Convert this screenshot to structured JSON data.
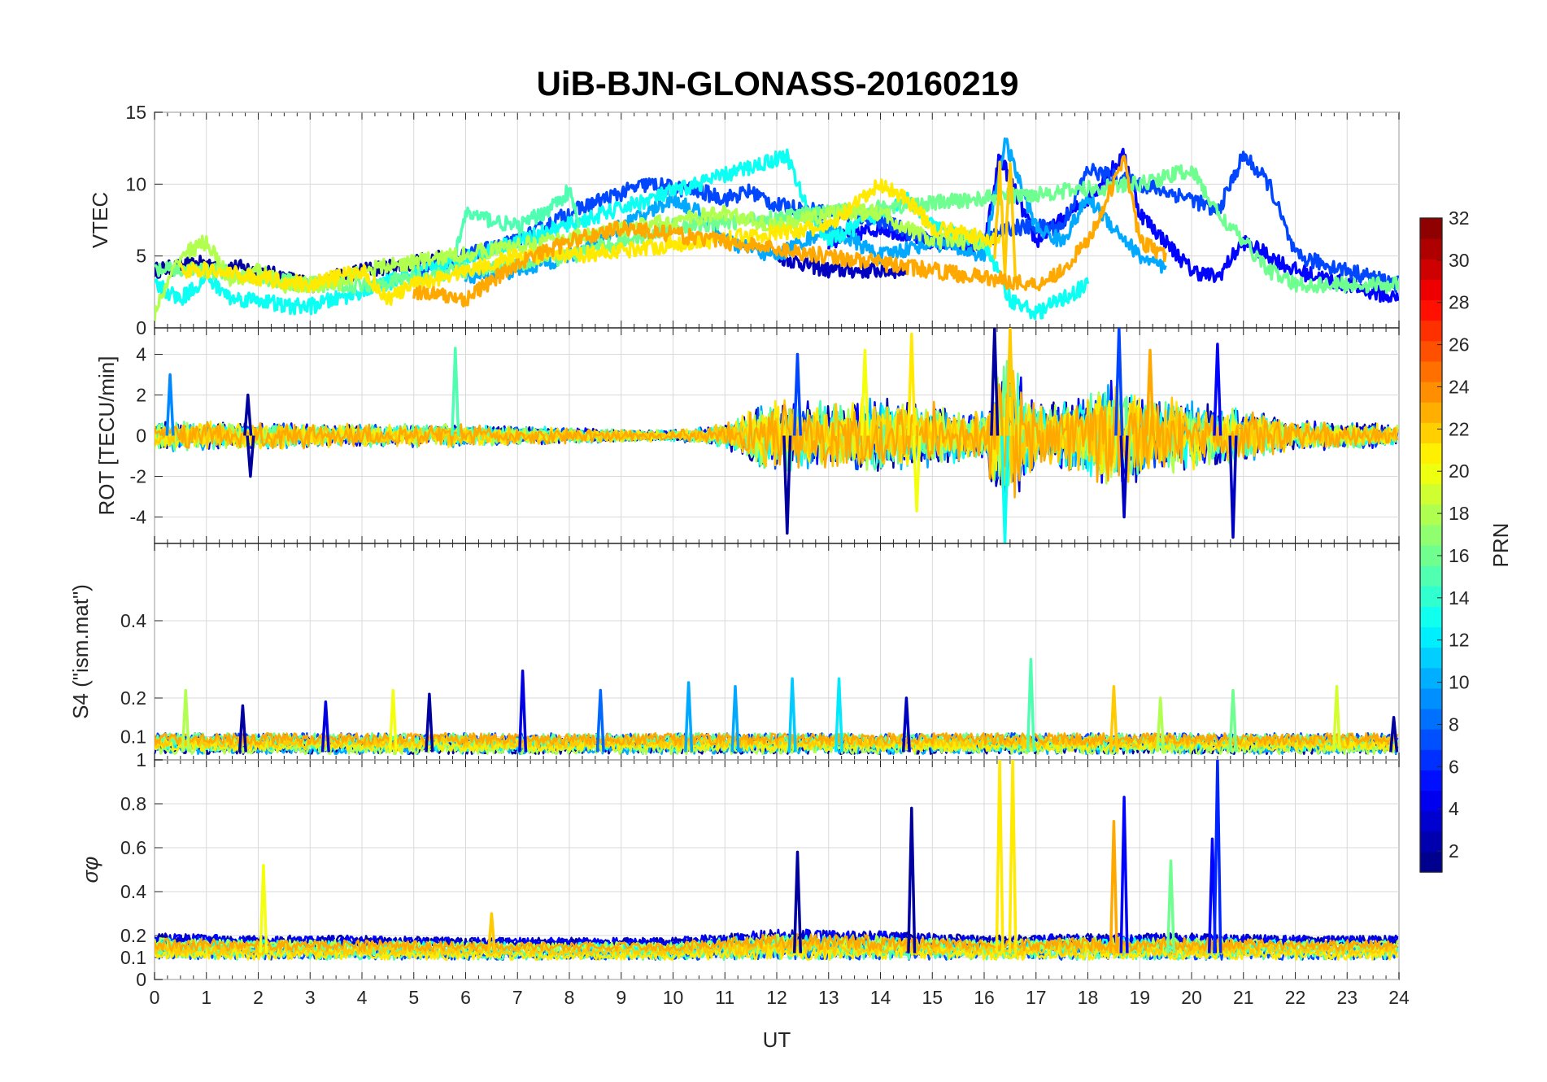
{
  "chart_data": {
    "title": "UiB-BJN-GLONASS-20160219",
    "xlabel": "UT",
    "xlim": [
      0,
      24
    ],
    "xticks": [
      "0",
      "1",
      "2",
      "3",
      "4",
      "5",
      "6",
      "7",
      "8",
      "9",
      "10",
      "11",
      "12",
      "13",
      "14",
      "15",
      "16",
      "17",
      "18",
      "19",
      "20",
      "21",
      "22",
      "23",
      "24"
    ],
    "colorbar": {
      "label": "PRN",
      "colormap": "jet",
      "range": [
        1,
        32
      ],
      "ticks": [
        "2",
        "4",
        "6",
        "8",
        "10",
        "12",
        "14",
        "16",
        "18",
        "20",
        "22",
        "24",
        "26",
        "28",
        "30",
        "32"
      ]
    },
    "panels": [
      {
        "type": "line",
        "name": "vtec",
        "ylabel": "VTEC",
        "ylim": [
          0,
          15
        ],
        "yticks": [
          "0",
          "5",
          "10",
          "15"
        ],
        "series": [
          {
            "name": "PRN 2",
            "prn": 2,
            "x": [
              0,
              1,
              2,
              3,
              4,
              5,
              5.5
            ],
            "y": [
              4,
              4.5,
              4,
              3,
              4,
              4.5,
              5
            ]
          },
          {
            "name": "PRN 3",
            "prn": 3,
            "x": [
              12,
              12.5,
              13,
              13.5,
              14,
              14.5
            ],
            "y": [
              5,
              4.5,
              4,
              4,
              4,
              4
            ]
          },
          {
            "name": "PRN 5",
            "prn": 5,
            "x": [
              13,
              14,
              15,
              16,
              16.3,
              17,
              18,
              18.7,
              19,
              20,
              20.5,
              21,
              22,
              23,
              24
            ],
            "y": [
              6,
              7,
              6,
              5.5,
              12,
              6,
              9,
              12,
              8,
              4,
              3.5,
              6,
              4,
              3,
              2
            ]
          },
          {
            "name": "PRN 7",
            "prn": 7,
            "x": [
              5,
              6,
              7,
              8,
              8.7,
              9.5,
              10.5,
              11,
              11.5,
              12,
              13,
              14,
              15,
              16,
              16.5,
              17.5,
              18,
              19,
              20,
              20.5,
              21,
              21.5,
              22,
              23,
              24
            ],
            "y": [
              4,
              5,
              6,
              8,
              9,
              10,
              9.5,
              9,
              9.5,
              8.5,
              8,
              7.5,
              6,
              6,
              7,
              7,
              11,
              10,
              9,
              8,
              12,
              10,
              5,
              4,
              3
            ]
          },
          {
            "name": "PRN 10",
            "prn": 10,
            "x": [
              6,
              7,
              8,
              9,
              10,
              10.5,
              11,
              12,
              13,
              14,
              15,
              16,
              16.4,
              17,
              17.5,
              18,
              19,
              19.5
            ],
            "y": [
              3.5,
              4,
              5,
              7,
              9,
              8,
              6,
              5,
              7,
              5,
              6,
              5,
              13,
              7,
              6,
              9,
              5,
              4
            ]
          },
          {
            "name": "PRN 13",
            "prn": 13,
            "x": [
              0,
              0.5,
              1,
              1.5,
              2,
              2.5,
              3,
              3.5,
              12.2,
              12.5,
              13,
              14.5,
              15,
              16,
              16.5,
              17,
              17.5,
              18
            ],
            "y": [
              3,
              2,
              3.5,
              2,
              2,
              1.5,
              1.5,
              2,
              12,
              9,
              6,
              9,
              7,
              6,
              2,
              1,
              2,
              3
            ]
          },
          {
            "name": "PRN 15",
            "prn": 15,
            "x": [
              5.8,
              6,
              7,
              7.5,
              8,
              8.2
            ],
            "y": [
              5,
              8,
              7,
              8,
              9.5,
              7
            ]
          },
          {
            "name": "PRN 16",
            "prn": 16,
            "x": [
              0,
              1,
              2,
              3,
              4,
              5,
              6,
              7,
              8,
              9,
              10,
              19,
              20,
              20.5,
              21,
              21.5,
              22,
              23,
              24
            ],
            "y": [
              4,
              4,
              3.5,
              3,
              3,
              3.5,
              4,
              4.5,
              5,
              6,
              7,
              10,
              11,
              8,
              6,
              4,
              3,
              3,
              3
            ]
          },
          {
            "name": "PRN 18",
            "prn": 18,
            "x": [
              0,
              0.5,
              1,
              1.5,
              2,
              2.5,
              3,
              3.5,
              4,
              11,
              12,
              12.5,
              13,
              14,
              15,
              16
            ],
            "y": [
              1,
              5,
              6,
              3,
              4,
              3,
              3,
              3,
              4,
              8,
              7,
              7.5,
              8,
              8,
              6,
              6
            ]
          },
          {
            "name": "PRN 21",
            "prn": 21,
            "x": [
              0.5,
              1,
              2,
              3,
              3.5,
              4,
              4.5,
              5,
              6,
              7,
              8,
              13,
              14,
              14.5,
              15,
              16.3
            ],
            "y": [
              4,
              4,
              3.5,
              3,
              3.5,
              4,
              2,
              3,
              4,
              5,
              5,
              7,
              10,
              9,
              7,
              6
            ]
          },
          {
            "name": "PRN 22",
            "prn": 22,
            "x": [
              16.2,
              16.3,
              16.4,
              16.5,
              16.6
            ],
            "y": [
              5,
              11,
              4,
              12,
              4
            ]
          },
          {
            "name": "PRN 23",
            "prn": 23,
            "x": [
              5,
              6,
              7,
              8,
              9,
              17,
              17.5,
              18,
              18.5,
              18.7,
              19,
              19.5
            ],
            "y": [
              2.5,
              2,
              4.5,
              6,
              7,
              3,
              4,
              6,
              10,
              12,
              6,
              5
            ]
          }
        ]
      },
      {
        "type": "line",
        "name": "rot",
        "ylabel": "ROT [TECU/min]",
        "ylim": [
          -5.3,
          5.3
        ],
        "yticks": [
          "-4",
          "-2",
          "0",
          "2",
          "4"
        ],
        "envelope": {
          "x": [
            0,
            2,
            4,
            6,
            8,
            10,
            11,
            11.5,
            12,
            13,
            14,
            15,
            16,
            16.3,
            16.6,
            17,
            18,
            18.5,
            19,
            20,
            21,
            22,
            23,
            24
          ],
          "amp": [
            0.8,
            0.7,
            0.6,
            0.6,
            0.4,
            0.3,
            0.6,
            1.5,
            2,
            1.8,
            2,
            1.7,
            1.2,
            4,
            4,
            1.6,
            2,
            3,
            2.2,
            1.8,
            1.4,
            0.8,
            0.7,
            0.6
          ]
        },
        "spikes": [
          {
            "prn": 9,
            "x": 0.3,
            "y": 3.0
          },
          {
            "prn": 2,
            "x": 1.8,
            "y": 2.0
          },
          {
            "prn": 2,
            "x": 1.85,
            "y": -2.0
          },
          {
            "prn": 15,
            "x": 5.8,
            "y": 4.3
          },
          {
            "prn": 2,
            "x": 12.2,
            "y": -4.8
          },
          {
            "prn": 7,
            "x": 12.4,
            "y": 4.0
          },
          {
            "prn": 20,
            "x": 13.7,
            "y": 4.2
          },
          {
            "prn": 21,
            "x": 14.6,
            "y": 5.0
          },
          {
            "prn": 20,
            "x": 14.7,
            "y": -3.7
          },
          {
            "prn": 2,
            "x": 16.2,
            "y": 5.3
          },
          {
            "prn": 13,
            "x": 16.4,
            "y": -5.3
          },
          {
            "prn": 22,
            "x": 16.5,
            "y": 5.3
          },
          {
            "prn": 7,
            "x": 18.6,
            "y": 5.3
          },
          {
            "prn": 3,
            "x": 18.7,
            "y": -4.0
          },
          {
            "prn": 23,
            "x": 19.2,
            "y": 4.2
          },
          {
            "prn": 5,
            "x": 20.5,
            "y": 4.5
          },
          {
            "prn": 3,
            "x": 20.8,
            "y": -5.0
          }
        ]
      },
      {
        "type": "line",
        "name": "s4",
        "ylabel": "S4 (\"ism.mat\")",
        "ylim": [
          0.04,
          0.6
        ],
        "yticks": [
          "0.1",
          "0.2",
          "0.4"
        ],
        "envelope": {
          "x": [
            0,
            4,
            8,
            12,
            16,
            20,
            24
          ],
          "amp": [
            0.03,
            0.03,
            0.03,
            0.03,
            0.03,
            0.03,
            0.03
          ]
        },
        "spikes": [
          {
            "prn": 18,
            "x": 0.6,
            "y": 0.22
          },
          {
            "prn": 2,
            "x": 1.7,
            "y": 0.18
          },
          {
            "prn": 4,
            "x": 3.3,
            "y": 0.19
          },
          {
            "prn": 20,
            "x": 4.6,
            "y": 0.22
          },
          {
            "prn": 2,
            "x": 5.3,
            "y": 0.21
          },
          {
            "prn": 4,
            "x": 7.1,
            "y": 0.27
          },
          {
            "prn": 8,
            "x": 8.6,
            "y": 0.22
          },
          {
            "prn": 10,
            "x": 10.3,
            "y": 0.24
          },
          {
            "prn": 10,
            "x": 11.2,
            "y": 0.23
          },
          {
            "prn": 11,
            "x": 12.3,
            "y": 0.25
          },
          {
            "prn": 12,
            "x": 13.2,
            "y": 0.25
          },
          {
            "prn": 3,
            "x": 14.5,
            "y": 0.2
          },
          {
            "prn": 15,
            "x": 16.9,
            "y": 0.3
          },
          {
            "prn": 22,
            "x": 18.5,
            "y": 0.23
          },
          {
            "prn": 18,
            "x": 19.4,
            "y": 0.2
          },
          {
            "prn": 16,
            "x": 20.8,
            "y": 0.22
          },
          {
            "prn": 19,
            "x": 22.8,
            "y": 0.23
          },
          {
            "prn": 2,
            "x": 23.9,
            "y": 0.15
          }
        ]
      },
      {
        "type": "line",
        "name": "sigma_phi",
        "ylabel": "σφ",
        "ylim": [
          0,
          1
        ],
        "yticks": [
          "0",
          "0.1",
          "0.2",
          "0.4",
          "0.6",
          "0.8",
          "1"
        ],
        "envelope": {
          "x": [
            0,
            2,
            4,
            6,
            8,
            10,
            12,
            14,
            16,
            18,
            20,
            22,
            24
          ],
          "amp": [
            0.06,
            0.05,
            0.05,
            0.04,
            0.04,
            0.04,
            0.08,
            0.07,
            0.05,
            0.06,
            0.06,
            0.05,
            0.05
          ]
        },
        "spikes": [
          {
            "prn": 20,
            "x": 2.1,
            "y": 0.52
          },
          {
            "prn": 22,
            "x": 6.5,
            "y": 0.3
          },
          {
            "prn": 2,
            "x": 12.4,
            "y": 0.58
          },
          {
            "prn": 2,
            "x": 14.6,
            "y": 0.78
          },
          {
            "prn": 21,
            "x": 16.3,
            "y": 1.0
          },
          {
            "prn": 21,
            "x": 16.55,
            "y": 1.0
          },
          {
            "prn": 23,
            "x": 18.5,
            "y": 0.72
          },
          {
            "prn": 5,
            "x": 18.7,
            "y": 0.83
          },
          {
            "prn": 16,
            "x": 19.6,
            "y": 0.54
          },
          {
            "prn": 5,
            "x": 20.4,
            "y": 0.64
          },
          {
            "prn": 6,
            "x": 20.5,
            "y": 1.0
          }
        ]
      }
    ]
  }
}
